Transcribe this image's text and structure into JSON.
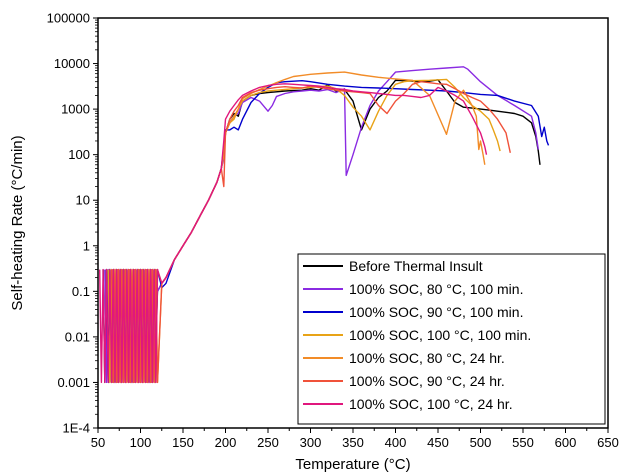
{
  "chart_data": {
    "type": "line",
    "title": "",
    "xlabel": "Temperature (°C)",
    "ylabel": "Self-heating Rate (°C/min)",
    "xlim": [
      50,
      650
    ],
    "ylim": [
      0.0001,
      100000
    ],
    "yscale": "log",
    "xticks": [
      "50",
      "100",
      "150",
      "200",
      "250",
      "300",
      "350",
      "400",
      "450",
      "500",
      "550",
      "600",
      "650"
    ],
    "yticks": [
      "1E-4",
      "0.001",
      "0.01",
      "0.1",
      "1",
      "10",
      "100",
      "1000",
      "10000",
      "100000"
    ],
    "grid": false,
    "legend_position": "bottom-right",
    "series": [
      {
        "name": "Before Thermal Insult",
        "color": "#000000",
        "x": [
          56,
          58,
          60,
          62,
          64,
          66,
          68,
          70,
          72,
          74,
          76,
          78,
          80,
          82,
          84,
          86,
          88,
          90,
          92,
          94,
          96,
          98,
          100,
          102,
          104,
          106,
          108,
          110,
          112,
          114,
          116,
          118,
          120,
          125,
          130,
          140,
          150,
          160,
          170,
          180,
          190,
          195,
          198,
          200,
          205,
          210,
          215,
          220,
          230,
          240,
          250,
          260,
          270,
          280,
          290,
          300,
          310,
          320,
          330,
          340,
          350,
          360,
          370,
          380,
          390,
          400,
          410,
          420,
          430,
          440,
          450,
          460,
          470,
          480,
          490,
          500,
          510,
          520,
          530,
          540,
          550,
          560,
          565,
          568,
          570
        ],
        "y": [
          0.3,
          0.001,
          0.3,
          0.001,
          0.3,
          0.001,
          0.3,
          0.001,
          0.3,
          0.001,
          0.3,
          0.001,
          0.3,
          0.001,
          0.3,
          0.001,
          0.3,
          0.001,
          0.3,
          0.001,
          0.3,
          0.001,
          0.3,
          0.001,
          0.3,
          0.001,
          0.3,
          0.001,
          0.3,
          0.001,
          0.3,
          0.01,
          0.1,
          0.15,
          0.2,
          0.5,
          1.0,
          2.0,
          4.5,
          10,
          25,
          50,
          100,
          300,
          600,
          800,
          700,
          1500,
          2000,
          2200,
          2300,
          2400,
          2500,
          2550,
          2600,
          2800,
          2600,
          3400,
          2500,
          2700,
          1500,
          350,
          1000,
          1800,
          2500,
          4300,
          4200,
          4100,
          4000,
          4100,
          4400,
          2500,
          1400,
          1100,
          1050,
          1000,
          950,
          900,
          850,
          800,
          700,
          500,
          250,
          120,
          60
        ]
      },
      {
        "name": "100% SOC, 80 °C, 100  min.",
        "color": "#8A2BE2",
        "x": [
          58,
          60,
          62,
          64,
          66,
          68,
          70,
          72,
          74,
          76,
          78,
          80,
          82,
          84,
          86,
          88,
          90,
          92,
          94,
          96,
          98,
          100,
          102,
          104,
          106,
          108,
          110,
          112,
          114,
          116,
          118,
          120,
          125,
          130,
          140,
          150,
          160,
          170,
          180,
          190,
          195,
          198,
          200,
          205,
          210,
          215,
          220,
          230,
          240,
          250,
          255,
          260,
          270,
          280,
          290,
          300,
          310,
          320,
          330,
          340,
          342,
          350,
          360,
          370,
          380,
          390,
          400,
          420,
          440,
          460,
          480,
          485,
          500,
          520,
          540,
          560,
          565,
          568
        ],
        "y": [
          0.3,
          0.001,
          0.3,
          0.001,
          0.3,
          0.001,
          0.3,
          0.001,
          0.3,
          0.001,
          0.3,
          0.001,
          0.3,
          0.001,
          0.3,
          0.001,
          0.3,
          0.001,
          0.3,
          0.001,
          0.3,
          0.001,
          0.3,
          0.001,
          0.3,
          0.001,
          0.3,
          0.001,
          0.3,
          0.001,
          0.3,
          0.1,
          0.15,
          0.2,
          0.5,
          1.0,
          2.0,
          4.5,
          10,
          25,
          50,
          80,
          300,
          500,
          700,
          800,
          1400,
          1800,
          1500,
          900,
          1200,
          1900,
          2200,
          2400,
          2500,
          2600,
          2500,
          2700,
          2300,
          2800,
          35,
          100,
          400,
          1200,
          2500,
          4000,
          6500,
          7000,
          7500,
          8000,
          8500,
          7500,
          4000,
          2000,
          1200,
          700,
          300,
          130
        ]
      },
      {
        "name": "100% SOC, 90 °C, 100  min.",
        "color": "#0000CD",
        "x": [
          60,
          62,
          64,
          66,
          68,
          70,
          72,
          74,
          76,
          78,
          80,
          82,
          84,
          86,
          88,
          90,
          92,
          94,
          96,
          98,
          100,
          102,
          104,
          106,
          108,
          110,
          112,
          114,
          116,
          118,
          120,
          125,
          130,
          140,
          150,
          160,
          170,
          180,
          190,
          195,
          198,
          200,
          205,
          210,
          215,
          220,
          230,
          240,
          250,
          260,
          270,
          280,
          290,
          300,
          320,
          340,
          360,
          380,
          400,
          420,
          440,
          460,
          480,
          500,
          520,
          540,
          560,
          568,
          572,
          575,
          578,
          580
        ],
        "y": [
          0.3,
          0.001,
          0.3,
          0.001,
          0.3,
          0.001,
          0.3,
          0.001,
          0.3,
          0.001,
          0.3,
          0.001,
          0.3,
          0.001,
          0.3,
          0.001,
          0.3,
          0.001,
          0.3,
          0.001,
          0.3,
          0.001,
          0.3,
          0.001,
          0.3,
          0.001,
          0.3,
          0.001,
          0.3,
          0.001,
          0.3,
          0.12,
          0.15,
          0.5,
          1.0,
          2.0,
          4.5,
          10,
          25,
          50,
          150,
          350,
          350,
          400,
          350,
          600,
          1400,
          2200,
          3000,
          3800,
          4000,
          4100,
          4200,
          4000,
          3500,
          3200,
          3000,
          2900,
          2800,
          2700,
          2600,
          2500,
          2300,
          2100,
          2000,
          1500,
          1200,
          700,
          250,
          400,
          200,
          160
        ]
      },
      {
        "name": "100% SOC, 100 °C, 100 min.",
        "color": "#E8A317",
        "x": [
          62,
          64,
          66,
          68,
          70,
          72,
          74,
          76,
          78,
          80,
          82,
          84,
          86,
          88,
          90,
          92,
          94,
          96,
          98,
          100,
          102,
          104,
          106,
          108,
          110,
          112,
          114,
          116,
          118,
          120,
          125,
          130,
          140,
          150,
          160,
          170,
          180,
          190,
          195,
          198,
          200,
          205,
          210,
          215,
          220,
          230,
          240,
          250,
          260,
          270,
          280,
          290,
          300,
          310,
          320,
          330,
          340,
          350,
          360,
          370,
          380,
          390,
          400,
          410,
          420,
          440,
          460,
          470,
          480,
          490,
          500,
          510,
          515,
          520,
          523
        ],
        "y": [
          0.3,
          0.001,
          0.3,
          0.001,
          0.3,
          0.001,
          0.3,
          0.001,
          0.3,
          0.001,
          0.3,
          0.001,
          0.3,
          0.001,
          0.3,
          0.001,
          0.3,
          0.001,
          0.3,
          0.001,
          0.3,
          0.001,
          0.3,
          0.001,
          0.3,
          0.001,
          0.3,
          0.001,
          0.3,
          0.001,
          0.15,
          0.2,
          0.5,
          1.0,
          2.0,
          4.5,
          10,
          25,
          50,
          100,
          300,
          500,
          600,
          1000,
          1500,
          2000,
          2300,
          2500,
          2600,
          2700,
          2800,
          2900,
          3000,
          3100,
          3200,
          2800,
          2000,
          1100,
          700,
          350,
          900,
          2000,
          3500,
          4000,
          4200,
          4300,
          4500,
          3000,
          1800,
          1200,
          900,
          600,
          350,
          200,
          120
        ]
      },
      {
        "name": "100% SOC, 80 °C, 24 hr.",
        "color": "#F28C28",
        "x": [
          64,
          66,
          68,
          70,
          72,
          74,
          76,
          78,
          80,
          82,
          84,
          86,
          88,
          90,
          92,
          94,
          96,
          98,
          100,
          102,
          104,
          106,
          108,
          110,
          112,
          114,
          116,
          118,
          120,
          125,
          130,
          140,
          150,
          160,
          170,
          180,
          190,
          195,
          198,
          200,
          205,
          210,
          215,
          220,
          230,
          240,
          250,
          260,
          270,
          280,
          290,
          300,
          320,
          340,
          360,
          380,
          400,
          420,
          440,
          460,
          470,
          480,
          490,
          495,
          498,
          500,
          503,
          505
        ],
        "y": [
          0.3,
          0.001,
          0.3,
          0.001,
          0.3,
          0.001,
          0.3,
          0.001,
          0.3,
          0.001,
          0.3,
          0.001,
          0.3,
          0.001,
          0.3,
          0.001,
          0.3,
          0.001,
          0.3,
          0.001,
          0.3,
          0.001,
          0.3,
          0.001,
          0.3,
          0.001,
          0.3,
          0.001,
          0.3,
          0.15,
          0.2,
          0.5,
          1.0,
          2.0,
          4.5,
          10,
          25,
          50,
          100,
          300,
          500,
          700,
          1000,
          1700,
          2200,
          2700,
          3200,
          3800,
          4500,
          5200,
          5500,
          5800,
          6200,
          6500,
          5600,
          5000,
          4600,
          4300,
          2000,
          280,
          1500,
          2600,
          1200,
          700,
          130,
          200,
          100,
          60
        ]
      },
      {
        "name": "100% SOC, 90 °C, 24 hr.",
        "color": "#F0523A",
        "x": [
          66,
          68,
          70,
          72,
          74,
          76,
          78,
          80,
          82,
          84,
          86,
          88,
          90,
          92,
          94,
          96,
          98,
          100,
          102,
          104,
          106,
          108,
          110,
          112,
          114,
          116,
          118,
          120,
          125,
          130,
          140,
          150,
          160,
          170,
          180,
          190,
          195,
          198,
          200,
          205,
          210,
          215,
          220,
          230,
          240,
          250,
          260,
          270,
          280,
          290,
          300,
          310,
          320,
          330,
          340,
          350,
          360,
          370,
          380,
          390,
          400,
          410,
          420,
          430,
          440,
          450,
          460,
          470,
          480,
          490,
          500,
          510,
          520,
          530,
          535
        ],
        "y": [
          0.3,
          0.001,
          0.3,
          0.001,
          0.3,
          0.001,
          0.3,
          0.001,
          0.3,
          0.001,
          0.3,
          0.001,
          0.3,
          0.001,
          0.3,
          0.001,
          0.3,
          0.001,
          0.3,
          0.001,
          0.3,
          0.001,
          0.3,
          0.001,
          0.3,
          0.001,
          0.3,
          0.001,
          0.15,
          0.2,
          0.5,
          1.0,
          2.0,
          4.5,
          10,
          25,
          50,
          20,
          300,
          600,
          900,
          1200,
          1800,
          2300,
          2600,
          2800,
          3000,
          3100,
          3000,
          2900,
          3200,
          3000,
          2800,
          2600,
          2500,
          2400,
          2300,
          2200,
          1200,
          800,
          1500,
          2200,
          3500,
          4000,
          3800,
          3600,
          3500,
          2800,
          2200,
          1800,
          1500,
          1000,
          600,
          300,
          110
        ]
      },
      {
        "name": "100% SOC, 100 °C, 24 hr.",
        "color": "#E0177D",
        "x": [
          52,
          54,
          56,
          58,
          60,
          62,
          64,
          66,
          68,
          70,
          72,
          74,
          76,
          78,
          80,
          82,
          84,
          86,
          88,
          90,
          92,
          94,
          96,
          98,
          100,
          102,
          104,
          106,
          108,
          110,
          112,
          114,
          116,
          118,
          120,
          125,
          130,
          140,
          150,
          160,
          170,
          180,
          190,
          195,
          198,
          200,
          205,
          210,
          215,
          220,
          230,
          240,
          250,
          260,
          270,
          280,
          290,
          300,
          310,
          320,
          330,
          340,
          350,
          360,
          370,
          380,
          390,
          400,
          410,
          420,
          430,
          440,
          450,
          460,
          470,
          480,
          490,
          500,
          503,
          505,
          507
        ],
        "y": [
          0.3,
          0.001,
          0.3,
          0.001,
          0.3,
          0.001,
          0.3,
          0.001,
          0.3,
          0.001,
          0.3,
          0.001,
          0.3,
          0.001,
          0.3,
          0.001,
          0.3,
          0.001,
          0.3,
          0.001,
          0.3,
          0.001,
          0.3,
          0.001,
          0.3,
          0.001,
          0.3,
          0.001,
          0.3,
          0.001,
          0.3,
          0.001,
          0.3,
          0.001,
          0.3,
          0.15,
          0.2,
          0.5,
          1.0,
          2.0,
          4.5,
          10,
          25,
          50,
          200,
          600,
          900,
          1200,
          1600,
          2000,
          2500,
          3000,
          3300,
          3500,
          3600,
          3500,
          3400,
          3300,
          3200,
          3000,
          2800,
          2700,
          2500,
          2400,
          2300,
          2200,
          2100,
          2000,
          2000,
          1900,
          1800,
          2000,
          3000,
          2500,
          2000,
          1500,
          700,
          300,
          200,
          150,
          100
        ]
      }
    ]
  }
}
